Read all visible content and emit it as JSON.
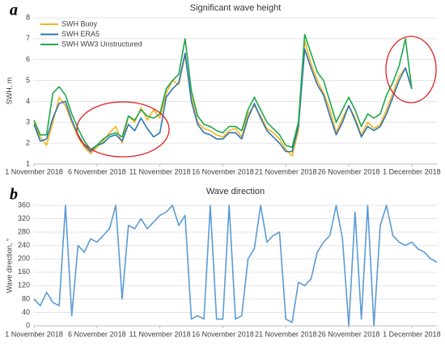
{
  "chart_data": [
    {
      "type": "line",
      "panel": "a",
      "title": "Significant wave height",
      "ylabel": "SWH, m",
      "legend": "upper left",
      "grid": true,
      "xlim": [
        0,
        32
      ],
      "xticks": [
        {
          "value": 0,
          "label": "1 November 2018"
        },
        {
          "value": 5,
          "label": "6 November 2018"
        },
        {
          "value": 10,
          "label": "11 November 2018"
        },
        {
          "value": 15,
          "label": "16 November 2018"
        },
        {
          "value": 20,
          "label": "21 November 2018"
        },
        {
          "value": 25,
          "label": "26 November 2018"
        },
        {
          "value": 30,
          "label": "1 December 2018"
        }
      ],
      "ylim": [
        1,
        8
      ],
      "yticks": [
        1,
        2,
        3,
        4,
        5,
        6,
        7,
        8
      ],
      "x": [
        0,
        0.5,
        1,
        1.5,
        2,
        2.5,
        3,
        3.5,
        4,
        4.5,
        5,
        5.5,
        6,
        6.5,
        7,
        7.5,
        8,
        8.5,
        9,
        9.5,
        10,
        10.5,
        11,
        11.5,
        12,
        12.5,
        13,
        13.5,
        14,
        14.5,
        15,
        15.5,
        16,
        16.5,
        17,
        17.5,
        18,
        18.5,
        19,
        19.5,
        20,
        20.5,
        21,
        21.5,
        22,
        22.5,
        23,
        23.5,
        24,
        24.5,
        25,
        25.5,
        26,
        26.5,
        27,
        27.5,
        28,
        28.5,
        29,
        29.5,
        30
      ],
      "series": [
        {
          "name": "SWH Buoy",
          "color": "#f5b41e",
          "values": [
            3.0,
            2.3,
            1.9,
            3.0,
            4.2,
            3.8,
            3.0,
            2.3,
            1.8,
            1.5,
            1.8,
            2.1,
            2.5,
            2.8,
            2.0,
            3.3,
            3.0,
            3.7,
            3.1,
            3.6,
            3.2,
            4.4,
            5.0,
            4.8,
            6.2,
            4.2,
            3.0,
            2.7,
            2.6,
            2.4,
            2.3,
            2.6,
            2.7,
            2.3,
            3.4,
            3.8,
            3.3,
            2.7,
            2.5,
            2.2,
            1.7,
            1.4,
            2.6,
            6.9,
            5.8,
            5.0,
            4.4,
            3.6,
            2.5,
            3.2,
            3.8,
            3.2,
            2.4,
            3.0,
            2.7,
            2.9,
            3.6,
            4.4,
            5.2,
            5.6,
            4.7
          ]
        },
        {
          "name": "SWH ERA5",
          "color": "#2e75b6",
          "values": [
            2.9,
            2.1,
            2.2,
            3.2,
            3.9,
            4.0,
            3.1,
            2.4,
            1.9,
            1.6,
            1.9,
            2.0,
            2.3,
            2.4,
            2.1,
            2.9,
            2.6,
            3.2,
            2.7,
            2.3,
            2.5,
            4.2,
            4.6,
            4.9,
            6.3,
            4.0,
            2.9,
            2.5,
            2.4,
            2.2,
            2.2,
            2.5,
            2.5,
            2.2,
            3.2,
            3.9,
            3.2,
            2.6,
            2.3,
            2.0,
            1.6,
            1.6,
            2.8,
            6.5,
            5.6,
            4.8,
            4.3,
            3.3,
            2.4,
            3.0,
            3.8,
            3.1,
            2.3,
            2.8,
            2.6,
            2.8,
            3.4,
            4.2,
            5.0,
            5.6,
            4.6
          ]
        },
        {
          "name": "SWH WW3 Unstructured",
          "color": "#1fa84a",
          "values": [
            3.1,
            2.4,
            2.4,
            4.4,
            4.7,
            4.3,
            3.4,
            2.7,
            2.1,
            1.7,
            1.9,
            2.2,
            2.4,
            2.5,
            2.3,
            3.3,
            3.1,
            3.6,
            3.3,
            3.2,
            3.4,
            4.6,
            5.0,
            5.3,
            7.0,
            4.5,
            3.3,
            2.9,
            2.8,
            2.6,
            2.5,
            2.8,
            2.8,
            2.6,
            3.6,
            4.2,
            3.6,
            3.0,
            2.7,
            2.4,
            1.9,
            1.8,
            3.0,
            7.2,
            6.3,
            5.4,
            5.0,
            4.0,
            3.0,
            3.6,
            4.2,
            3.6,
            2.8,
            3.4,
            3.2,
            3.4,
            4.3,
            4.9,
            5.7,
            7.0,
            4.6
          ]
        }
      ]
    },
    {
      "type": "line",
      "panel": "b",
      "title": "Wave direction",
      "ylabel": "Wave direction, °",
      "grid": true,
      "xlim": [
        0,
        32
      ],
      "xticks": [
        {
          "value": 0,
          "label": "1 November 2018"
        },
        {
          "value": 5,
          "label": "6 November 2018"
        },
        {
          "value": 10,
          "label": "11 November 2018"
        },
        {
          "value": 15,
          "label": "16 November 2018"
        },
        {
          "value": 20,
          "label": "21 November 2018"
        },
        {
          "value": 25,
          "label": "26 November 2018"
        },
        {
          "value": 30,
          "label": "1 December 2018"
        }
      ],
      "ylim": [
        0,
        360
      ],
      "yticks": [
        0,
        40,
        80,
        120,
        160,
        200,
        240,
        280,
        320,
        360
      ],
      "x": [
        0,
        0.5,
        1,
        1.5,
        2,
        2.5,
        3,
        3.5,
        4,
        4.5,
        5,
        5.5,
        6,
        6.5,
        7,
        7.5,
        8,
        8.5,
        9,
        9.5,
        10,
        10.5,
        11,
        11.5,
        12,
        12.5,
        13,
        13.5,
        14,
        14.5,
        15,
        15.5,
        16,
        16.5,
        17,
        17.5,
        18,
        18.5,
        19,
        19.5,
        20,
        20.5,
        21,
        21.5,
        22,
        22.5,
        23,
        23.5,
        24,
        24.5,
        25,
        25.5,
        26,
        26.5,
        27,
        27.5,
        28,
        28.5,
        29,
        29.5,
        30,
        30.5,
        31,
        31.5,
        32
      ],
      "color": "#5b9bd5",
      "values": [
        80,
        60,
        100,
        70,
        60,
        360,
        30,
        240,
        220,
        260,
        250,
        270,
        290,
        360,
        80,
        300,
        290,
        320,
        290,
        310,
        330,
        340,
        360,
        300,
        330,
        20,
        30,
        20,
        360,
        20,
        20,
        360,
        20,
        30,
        200,
        230,
        360,
        250,
        270,
        280,
        20,
        10,
        130,
        120,
        140,
        220,
        250,
        270,
        360,
        260,
        0,
        340,
        20,
        360,
        0,
        300,
        360,
        270,
        250,
        240,
        250,
        230,
        220,
        200,
        190
      ]
    }
  ]
}
